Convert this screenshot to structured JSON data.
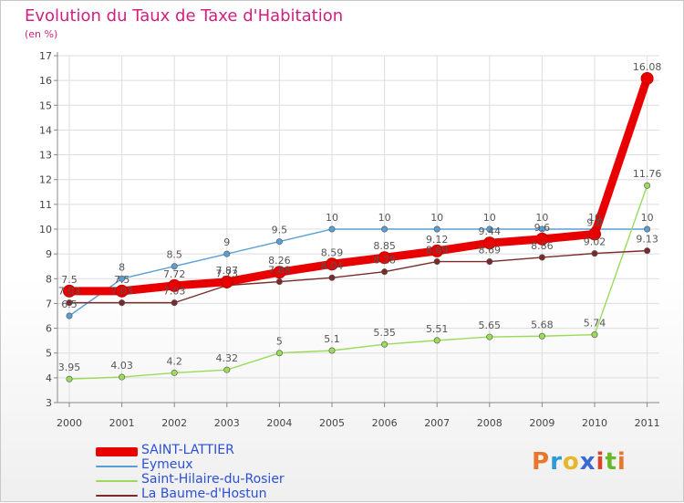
{
  "header": {
    "title": "Evolution du Taux de Taxe d'Habitation",
    "subtitle": "(en %)"
  },
  "logo": {
    "text": "Proxiti",
    "letters": [
      "P",
      "r",
      "o",
      "x",
      "i",
      "t",
      "i"
    ]
  },
  "chart_data": {
    "type": "line",
    "title": "Evolution du Taux de Taxe d'Habitation",
    "subtitle": "(en %)",
    "xlabel": "",
    "ylabel": "",
    "x": [
      "2000",
      "2001",
      "2002",
      "2003",
      "2004",
      "2005",
      "2006",
      "2007",
      "2008",
      "2009",
      "2010",
      "2011"
    ],
    "ylim": [
      3,
      17
    ],
    "yticks": [
      "3",
      "4",
      "5",
      "6",
      "7",
      "8",
      "9",
      "10",
      "11",
      "12",
      "13",
      "14",
      "15",
      "16",
      "17"
    ],
    "grid": true,
    "legend_position": "bottom-left",
    "series": [
      {
        "name": "SAINT-LATTIER",
        "color": "#e80000",
        "values": [
          7.5,
          7.5,
          7.72,
          7.87,
          8.26,
          8.59,
          8.85,
          9.12,
          9.44,
          9.6,
          9.8,
          16.08
        ],
        "labels": [
          "7.5",
          "7.5",
          "7.72",
          "7.87",
          "8.26",
          "8.59",
          "8.85",
          "9.12",
          "9.44",
          "9.6",
          "9.8",
          "16.08"
        ]
      },
      {
        "name": "Eymeux",
        "color": "#5a9fd4",
        "values": [
          6.5,
          8,
          8.5,
          9,
          9.5,
          10,
          10,
          10,
          10,
          10,
          10,
          10
        ],
        "labels": [
          "6.5",
          "8",
          "8.5",
          "9",
          "9.5",
          "10",
          "10",
          "10",
          "10",
          "10",
          "10",
          "10"
        ]
      },
      {
        "name": "Saint-Hilaire-du-Rosier",
        "color": "#9adb5a",
        "values": [
          3.95,
          4.03,
          4.2,
          4.32,
          5,
          5.1,
          5.35,
          5.51,
          5.65,
          5.68,
          5.74,
          11.76
        ],
        "labels": [
          "3.95",
          "4.03",
          "4.2",
          "4.32",
          "5",
          "5.1",
          "5.35",
          "5.51",
          "5.65",
          "5.68",
          "5.74",
          "11.76"
        ]
      },
      {
        "name": "La Baume-d'Hostun",
        "color": "#7a2a2a",
        "values": [
          7.03,
          7.03,
          7.03,
          7.73,
          7.88,
          8.04,
          8.28,
          8.69,
          8.69,
          8.86,
          9.02,
          9.13
        ],
        "labels": [
          "7.03",
          "7.03",
          "7.03",
          "7.73",
          "7.88",
          "8.04",
          "8.28",
          "8.69",
          "8.69",
          "8.86",
          "9.02",
          "9.13"
        ]
      }
    ]
  }
}
